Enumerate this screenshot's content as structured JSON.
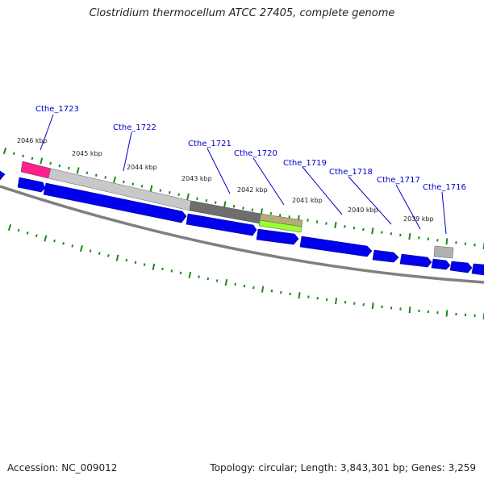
{
  "title": "Clostridium thermocellum ATCC 27405, complete genome",
  "footer": {
    "accession": "Accession: NC_009012",
    "summary": "Topology: circular; Length: 3,843,301 bp; Genes: 3,259"
  },
  "kbp_labels": [
    "2046 kbp",
    "2045 kbp",
    "2044 kbp",
    "2043 kbp",
    "2042 kbp",
    "2041 kbp",
    "2040 kbp",
    "2039 kbp"
  ],
  "gene_labels": [
    "Cthe_1723",
    "Cthe_1722",
    "Cthe_1721",
    "Cthe_1720",
    "Cthe_1719",
    "Cthe_1718",
    "Cthe_1717",
    "Cthe_1716"
  ],
  "colors": {
    "cds": "#0000ee",
    "backbone": "#808080",
    "ticks": "#1a8a1a",
    "magenta_feature": "#ff1f8f",
    "light_gray_feature": "#c8c8c8",
    "dark_gray_feature": "#6e6e6e",
    "olive_feature": "#b5ad72",
    "green_feature": "#99ff33",
    "label_text": "#0000cc"
  }
}
